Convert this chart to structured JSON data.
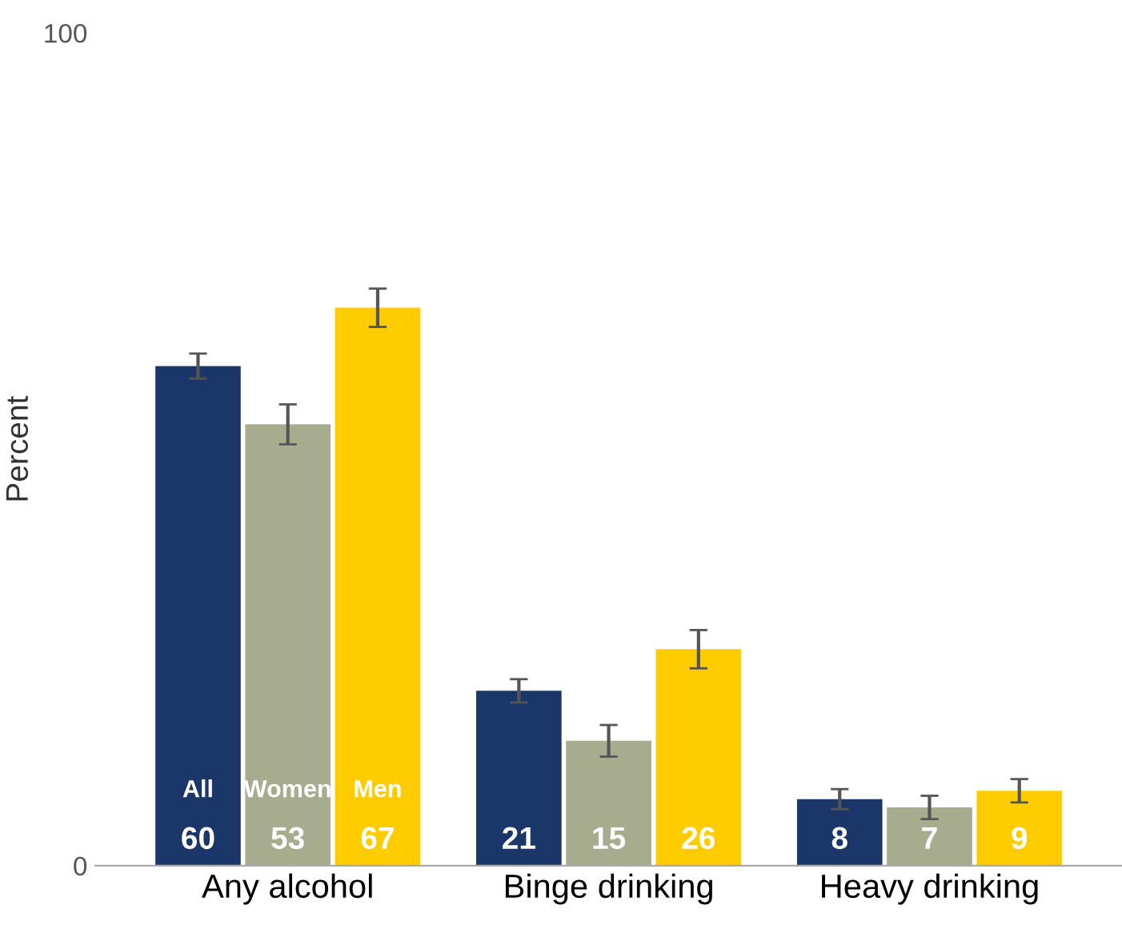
{
  "chart_data": {
    "type": "bar",
    "ylabel": "Percent",
    "categories": [
      "Any alcohol",
      "Binge drinking",
      "Heavy drinking"
    ],
    "series": [
      {
        "name": "All",
        "color": "#1b3769",
        "values": [
          60,
          21,
          8
        ],
        "errors": [
          1.5,
          1.4,
          1.2
        ]
      },
      {
        "name": "Women",
        "color": "#a8ac8e",
        "values": [
          53,
          15,
          7
        ],
        "errors": [
          2.4,
          1.9,
          1.4
        ]
      },
      {
        "name": "Men",
        "color": "#ffcc00",
        "values": [
          67,
          26,
          9
        ],
        "errors": [
          2.3,
          2.3,
          1.4
        ]
      }
    ],
    "ylim": [
      0,
      100
    ],
    "yticks": [
      0,
      100
    ],
    "data_labels": true,
    "grid": false,
    "legend": false
  }
}
